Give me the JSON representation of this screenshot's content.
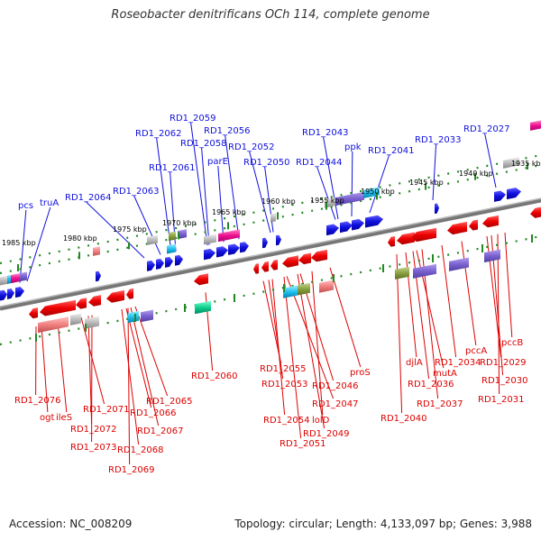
{
  "title": "Roseobacter denitrificans OCh 114, complete genome",
  "accession": "Accession: NC_008209",
  "summary": "Topology: circular; Length: 4,133,097 bp; Genes: 3,988",
  "colors": {
    "forward": "#1010dd",
    "reverse": "#dd0000",
    "ticks": "#228822",
    "backbone": "#888888"
  },
  "ticks": [
    {
      "label": "1985 kbp"
    },
    {
      "label": "1980 kbp"
    },
    {
      "label": "1975 kbp"
    },
    {
      "label": "1970 kbp"
    },
    {
      "label": "1965 kbp"
    },
    {
      "label": "1960 kbp"
    },
    {
      "label": "1955 kbp"
    },
    {
      "label": "1950 kbp"
    },
    {
      "label": "1945 kbp"
    },
    {
      "label": "1940 kbp"
    },
    {
      "label": "1935 kbp"
    }
  ],
  "forward_labels": [
    {
      "text": "pcs"
    },
    {
      "text": "truA"
    },
    {
      "text": "RD1_2064"
    },
    {
      "text": "RD1_2063"
    },
    {
      "text": "RD1_2062"
    },
    {
      "text": "RD1_2061"
    },
    {
      "text": "RD1_2059"
    },
    {
      "text": "RD1_2058"
    },
    {
      "text": "parE"
    },
    {
      "text": "RD1_2056"
    },
    {
      "text": "RD1_2052"
    },
    {
      "text": "RD1_2050"
    },
    {
      "text": "RD1_2043"
    },
    {
      "text": "RD1_2044"
    },
    {
      "text": "ppk"
    },
    {
      "text": "RD1_2041"
    },
    {
      "text": "RD1_2033"
    },
    {
      "text": "RD1_2027"
    }
  ],
  "reverse_labels": [
    {
      "text": "RD1_2076"
    },
    {
      "text": "ogt"
    },
    {
      "text": "ileS"
    },
    {
      "text": "RD1_2071"
    },
    {
      "text": "RD1_2072"
    },
    {
      "text": "RD1_2073"
    },
    {
      "text": "RD1_2066"
    },
    {
      "text": "RD1_2065"
    },
    {
      "text": "RD1_2067"
    },
    {
      "text": "RD1_2068"
    },
    {
      "text": "RD1_2069"
    },
    {
      "text": "RD1_2060"
    },
    {
      "text": "RD1_2055"
    },
    {
      "text": "RD1_2053"
    },
    {
      "text": "RD1_2054"
    },
    {
      "text": "RD1_2047"
    },
    {
      "text": "RD1_2046"
    },
    {
      "text": "proS"
    },
    {
      "text": "lolD"
    },
    {
      "text": "RD1_2049"
    },
    {
      "text": "RD1_2051"
    },
    {
      "text": "RD1_2040"
    },
    {
      "text": "djlA"
    },
    {
      "text": "RD1_2036"
    },
    {
      "text": "RD1_2037"
    },
    {
      "text": "mutA"
    },
    {
      "text": "RD1_2034"
    },
    {
      "text": "pccA"
    },
    {
      "text": "RD1_2029"
    },
    {
      "text": "RD1_2030"
    },
    {
      "text": "RD1_2031"
    },
    {
      "text": "pccB"
    }
  ]
}
